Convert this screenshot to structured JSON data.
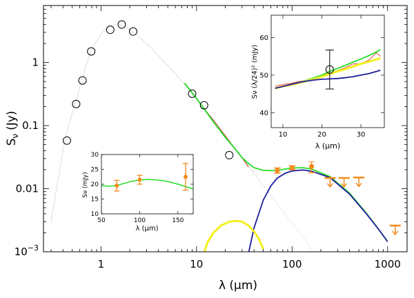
{
  "chart_data": [
    {
      "type": "line",
      "role": "main-sed",
      "xlabel": "λ (μm)",
      "ylabel_main": "S",
      "ylabel_sub": "ν",
      "ylabel_unit": "(Jy)",
      "xscale": "log",
      "yscale": "log",
      "xlim": [
        0.25,
        1600
      ],
      "ylim": [
        0.001,
        8
      ],
      "x_ticks": [
        1,
        10,
        100,
        1000
      ],
      "x_tick_labels": [
        "1",
        "10",
        "100",
        "1000"
      ],
      "y_ticks": [
        0.001,
        0.01,
        0.1,
        1
      ],
      "y_tick_labels": [
        "10^-3",
        "0.01",
        "0.1",
        "1"
      ],
      "grid": false,
      "photometry_circles": {
        "x": [
          0.44,
          0.55,
          0.64,
          0.79,
          1.25,
          1.65,
          2.17,
          9.0,
          12.0,
          22.0
        ],
        "y": [
          0.058,
          0.22,
          0.52,
          1.5,
          3.3,
          4.0,
          3.1,
          0.32,
          0.21,
          0.034
        ]
      },
      "far_ir_points": [
        {
          "x": 70,
          "y": 0.0195,
          "err_low": 0.0018,
          "err_high": 0.0018
        },
        {
          "x": 100,
          "y": 0.0215,
          "err_low": 0.0015,
          "err_high": 0.0015
        },
        {
          "x": 160,
          "y": 0.0225,
          "err_low": 0.0045,
          "err_high": 0.0045
        }
      ],
      "upper_limits": [
        {
          "x": 250,
          "y": 0.0148
        },
        {
          "x": 350,
          "y": 0.0148
        },
        {
          "x": 500,
          "y": 0.015
        },
        {
          "x": 1200,
          "y": 0.0026
        }
      ],
      "series": [
        {
          "style": "stellar-spectrum",
          "color": "#b4b4b4",
          "x": [
            0.3,
            0.4,
            0.45,
            0.5,
            0.55,
            0.6,
            0.7,
            0.8,
            1.0,
            1.2,
            1.5,
            1.8,
            2.2,
            2.7,
            3.5,
            4.5,
            6,
            8,
            10,
            15,
            20,
            30,
            40
          ],
          "y": [
            0.003,
            0.04,
            0.09,
            0.16,
            0.25,
            0.4,
            0.9,
            1.6,
            2.8,
            3.7,
            4.1,
            3.7,
            3.0,
            2.3,
            1.6,
            1.05,
            0.66,
            0.4,
            0.26,
            0.115,
            0.065,
            0.03,
            0.018
          ]
        },
        {
          "style": "photosphere-extrapolation",
          "color": "#b4b4b4",
          "x": [
            25,
            40,
            60,
            90,
            130,
            170
          ],
          "y": [
            0.045,
            0.0175,
            0.0078,
            0.0035,
            0.0017,
            0.00097
          ]
        },
        {
          "style": "ir-spectrum",
          "color": "#c0392b",
          "x": [
            7.5,
            10,
            13,
            16,
            20,
            25,
            30,
            35
          ],
          "y": [
            0.47,
            0.27,
            0.16,
            0.108,
            0.069,
            0.044,
            0.031,
            0.022
          ]
        },
        {
          "style": "total-model",
          "color": "#22dd22",
          "x": [
            7.5,
            10,
            15,
            20,
            25,
            30,
            35,
            40,
            50,
            60,
            70,
            85,
            100,
            130,
            160,
            250,
            400,
            600,
            800,
            1000
          ],
          "y": [
            0.47,
            0.27,
            0.115,
            0.065,
            0.044,
            0.031,
            0.025,
            0.0215,
            0.0195,
            0.0193,
            0.0195,
            0.0205,
            0.0213,
            0.0215,
            0.0205,
            0.0155,
            0.0085,
            0.0041,
            0.0023,
            0.00145
          ]
        },
        {
          "style": "cold-dust",
          "color": "#1c1c9e",
          "x": [
            35,
            40,
            50,
            60,
            70,
            85,
            100,
            130,
            160,
            250,
            400,
            600,
            800,
            1000
          ],
          "y": [
            0.00095,
            0.0024,
            0.0066,
            0.0111,
            0.0147,
            0.0176,
            0.0191,
            0.0198,
            0.0189,
            0.015,
            0.0082,
            0.004,
            0.0023,
            0.00145
          ]
        },
        {
          "style": "warm-dust",
          "color": "#f4ef1e",
          "x": [
            12,
            13,
            15,
            18,
            22,
            26,
            30,
            35,
            40,
            45,
            50
          ],
          "y": [
            0.00095,
            0.0014,
            0.002,
            0.0026,
            0.003,
            0.0031,
            0.003,
            0.0026,
            0.0021,
            0.0016,
            0.0011
          ]
        }
      ]
    },
    {
      "type": "line",
      "role": "inset-right",
      "xlabel": "λ (μm)",
      "ylabel": "Sν (λ/24)² (mJy)",
      "xlim": [
        7,
        36
      ],
      "ylim": [
        36,
        66
      ],
      "x_ticks": [
        10,
        20,
        30
      ],
      "y_ticks": [
        40,
        50,
        60
      ],
      "grid": false,
      "point": {
        "x": 22,
        "y": 51.5,
        "err": 5.2
      },
      "series": [
        {
          "style": "spectrum",
          "color": "#dd4444",
          "x": [
            8,
            10,
            12,
            14,
            16,
            18,
            20,
            22,
            24,
            26,
            28,
            30,
            32,
            34,
            35
          ],
          "y": [
            47,
            47.5,
            47.8,
            48.3,
            48.6,
            49.2,
            50,
            50.5,
            51.2,
            52,
            53,
            53,
            54,
            56,
            55
          ]
        },
        {
          "style": "total-model",
          "color": "#22dd22",
          "x": [
            8,
            10,
            12,
            14,
            16,
            18,
            20,
            22,
            24,
            26,
            28,
            30,
            32,
            34,
            35
          ],
          "y": [
            46.5,
            47,
            47.5,
            48,
            48.6,
            49.3,
            50,
            51,
            51.8,
            52.6,
            53.5,
            54.3,
            55.2,
            56.2,
            56.8
          ]
        },
        {
          "style": "warm-model",
          "color": "#f4ef1e",
          "x": [
            8,
            10,
            12,
            14,
            16,
            18,
            20,
            22,
            24,
            26,
            28,
            30,
            32,
            34,
            35
          ],
          "y": [
            46.5,
            47,
            47.4,
            47.9,
            48.4,
            49,
            49.6,
            50.3,
            51,
            51.6,
            52.3,
            53,
            53.6,
            54.2,
            54.5
          ]
        },
        {
          "style": "photosphere-model",
          "color": "#1c1c9e",
          "x": [
            8,
            10,
            12,
            14,
            16,
            18,
            20,
            22,
            24,
            26,
            28,
            30,
            32,
            34,
            35
          ],
          "y": [
            46.5,
            47,
            47.5,
            48,
            48.4,
            48.7,
            48.9,
            49,
            49.1,
            49.3,
            49.6,
            50,
            50.4,
            51,
            51.3
          ]
        }
      ]
    },
    {
      "type": "line",
      "role": "inset-left",
      "xlabel": "λ (μm)",
      "ylabel": "Sν (mJy)",
      "xlim": [
        50,
        170
      ],
      "ylim": [
        10,
        30
      ],
      "x_ticks": [
        50,
        100,
        150
      ],
      "y_ticks": [
        10,
        15,
        20,
        25,
        30
      ],
      "grid": false,
      "points": [
        {
          "x": 70,
          "y": 19.5,
          "err": 1.8
        },
        {
          "x": 100,
          "y": 21.5,
          "err": 1.5
        },
        {
          "x": 160,
          "y": 22.5,
          "err": 4.5
        }
      ],
      "series": [
        {
          "style": "total-model",
          "color": "#22dd22",
          "x": [
            50,
            60,
            70,
            80,
            90,
            100,
            110,
            120,
            130,
            140,
            150,
            160,
            170
          ],
          "y": [
            19.5,
            19.3,
            19.5,
            20.3,
            21,
            21.4,
            21.6,
            21.5,
            21.2,
            20.7,
            20,
            19.2,
            18.4
          ]
        }
      ]
    }
  ]
}
